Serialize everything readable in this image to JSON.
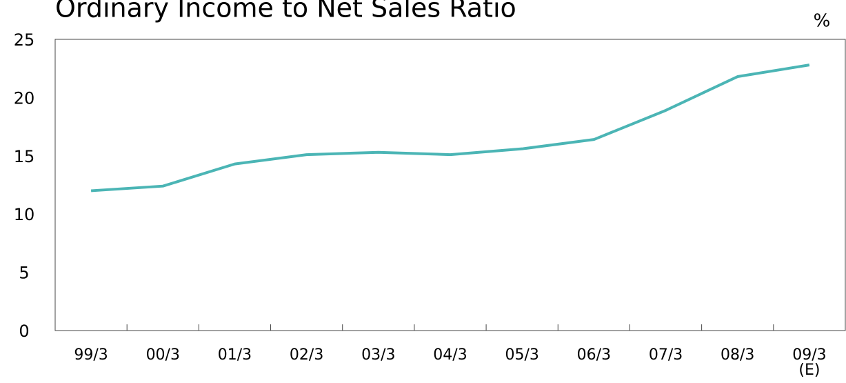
{
  "chart_data": {
    "type": "line",
    "title": "Ordinary Income to Net Sales Ratio",
    "unit": "%",
    "categories": [
      "99/3",
      "00/3",
      "01/3",
      "02/3",
      "03/3",
      "04/3",
      "05/3",
      "06/3",
      "07/3",
      "08/3",
      "09/3\n(E)"
    ],
    "series": [
      {
        "name": "Ordinary Income to Net Sales Ratio",
        "color": "#4bb5b5",
        "values": [
          12.0,
          12.4,
          14.3,
          15.1,
          15.3,
          15.1,
          15.6,
          16.4,
          18.9,
          21.8,
          22.8
        ]
      }
    ],
    "ylim": [
      0,
      25
    ],
    "yticks": [
      0,
      5,
      10,
      15,
      20,
      25
    ],
    "grid": false
  }
}
